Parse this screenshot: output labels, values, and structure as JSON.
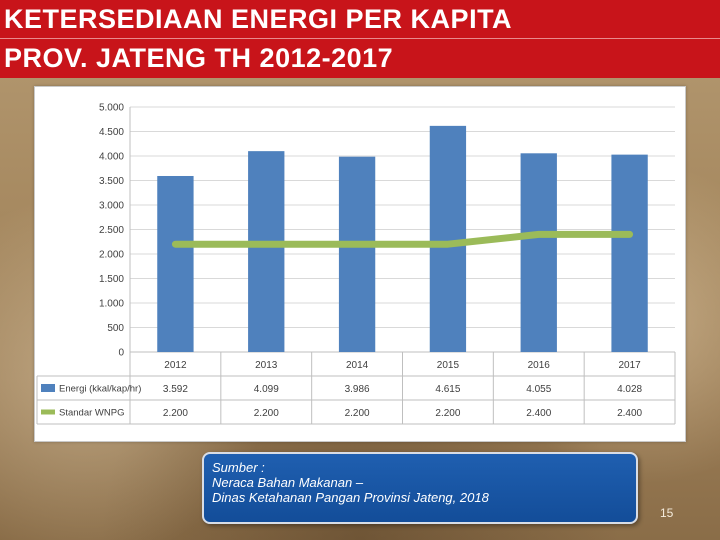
{
  "slide": {
    "title_line1": "KETERSEDIAAN ENERGI PER KAPITA",
    "title_line2": "PROV. JATENG TH 2012-2017",
    "page_number": "15"
  },
  "source": {
    "line1": "Sumber :",
    "line2": "Neraca Bahan Makanan –",
    "line3": "Dinas Ketahanan Pangan Provinsi Jateng, 2018"
  },
  "colors": {
    "title_bg": "#c8141a",
    "bar": "#4f81bd",
    "line": "#9bbb59",
    "source_bg": "#1f5fb0"
  },
  "chart_data": {
    "type": "bar",
    "categories": [
      "2012",
      "2013",
      "2014",
      "2015",
      "2016",
      "2017"
    ],
    "ylim": [
      0,
      5000
    ],
    "yticks": [
      0,
      500,
      1000,
      1500,
      2000,
      2500,
      3000,
      3500,
      4000,
      4500,
      5000
    ],
    "ytick_labels": [
      "0",
      "500",
      "1.000",
      "1.500",
      "2.000",
      "2.500",
      "3.000",
      "3.500",
      "4.000",
      "4.500",
      "5.000"
    ],
    "grid": true,
    "legend": "data-table-below",
    "series": [
      {
        "name": "Energi (kkal/kap/hr)",
        "type": "bar",
        "values": [
          3592,
          4099,
          3986,
          4615,
          4055,
          4028
        ],
        "labels": [
          "3.592",
          "4.099",
          "3.986",
          "4.615",
          "4.055",
          "4.028"
        ]
      },
      {
        "name": "Standar WNPG",
        "type": "line",
        "values": [
          2200,
          2200,
          2200,
          2200,
          2400,
          2400
        ],
        "labels": [
          "2.200",
          "2.200",
          "2.200",
          "2.200",
          "2.400",
          "2.400"
        ]
      }
    ]
  }
}
